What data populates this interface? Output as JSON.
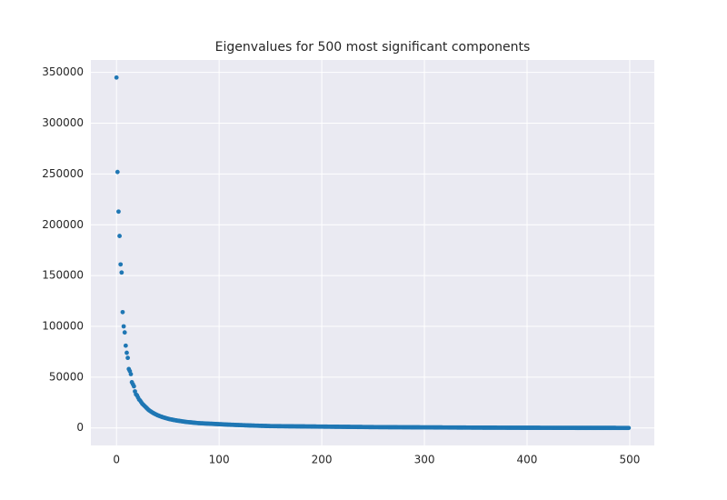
{
  "chart_data": {
    "type": "scatter",
    "title": "Eigenvalues for 500 most significant components",
    "x": [
      0,
      1,
      2,
      3,
      4,
      5,
      6,
      7,
      8,
      9,
      10,
      11,
      12,
      13,
      14,
      15,
      16,
      17,
      18,
      19,
      20,
      21,
      22,
      23,
      24,
      25,
      26,
      27,
      28,
      29,
      30,
      31,
      32,
      33,
      34,
      35,
      36,
      37,
      38,
      39,
      40,
      41,
      42,
      43,
      44,
      45,
      46,
      47,
      48,
      49,
      50,
      51,
      52,
      53,
      54,
      55,
      56,
      57,
      58,
      59,
      60,
      61,
      62,
      63,
      64,
      65,
      66,
      67,
      68,
      69,
      70,
      71,
      72,
      73,
      74,
      75,
      76,
      77,
      78,
      79,
      80,
      81,
      82,
      83,
      84,
      85,
      86,
      87,
      88,
      89,
      90,
      91,
      92,
      93,
      94,
      95,
      96,
      97,
      98,
      99,
      100,
      101,
      102,
      103,
      104,
      105,
      106,
      107,
      108,
      109,
      110,
      111,
      112,
      113,
      114,
      115,
      116,
      117,
      118,
      119,
      120,
      121,
      122,
      123,
      124,
      125,
      126,
      127,
      128,
      129,
      130,
      131,
      132,
      133,
      134,
      135,
      136,
      137,
      138,
      139,
      140,
      141,
      142,
      143,
      144,
      145,
      146,
      147,
      148,
      149,
      150,
      151,
      152,
      153,
      154,
      155,
      156,
      157,
      158,
      159,
      160,
      161,
      162,
      163,
      164,
      165,
      166,
      167,
      168,
      169,
      170,
      171,
      172,
      173,
      174,
      175,
      176,
      177,
      178,
      179,
      180,
      181,
      182,
      183,
      184,
      185,
      186,
      187,
      188,
      189,
      190,
      191,
      192,
      193,
      194,
      195,
      196,
      197,
      198,
      199,
      200,
      201,
      202,
      203,
      204,
      205,
      206,
      207,
      208,
      209,
      210,
      211,
      212,
      213,
      214,
      215,
      216,
      217,
      218,
      219,
      220,
      221,
      222,
      223,
      224,
      225,
      226,
      227,
      228,
      229,
      230,
      231,
      232,
      233,
      234,
      235,
      236,
      237,
      238,
      239,
      240,
      241,
      242,
      243,
      244,
      245,
      246,
      247,
      248,
      249,
      250,
      251,
      252,
      253,
      254,
      255,
      256,
      257,
      258,
      259,
      260,
      261,
      262,
      263,
      264,
      265,
      266,
      267,
      268,
      269,
      270,
      271,
      272,
      273,
      274,
      275,
      276,
      277,
      278,
      279,
      280,
      281,
      282,
      283,
      284,
      285,
      286,
      287,
      288,
      289,
      290,
      291,
      292,
      293,
      294,
      295,
      296,
      297,
      298,
      299,
      300,
      301,
      302,
      303,
      304,
      305,
      306,
      307,
      308,
      309,
      310,
      311,
      312,
      313,
      314,
      315,
      316,
      317,
      318,
      319,
      320,
      321,
      322,
      323,
      324,
      325,
      326,
      327,
      328,
      329,
      330,
      331,
      332,
      333,
      334,
      335,
      336,
      337,
      338,
      339,
      340,
      341,
      342,
      343,
      344,
      345,
      346,
      347,
      348,
      349,
      350,
      351,
      352,
      353,
      354,
      355,
      356,
      357,
      358,
      359,
      360,
      361,
      362,
      363,
      364,
      365,
      366,
      367,
      368,
      369,
      370,
      371,
      372,
      373,
      374,
      375,
      376,
      377,
      378,
      379,
      380,
      381,
      382,
      383,
      384,
      385,
      386,
      387,
      388,
      389,
      390,
      391,
      392,
      393,
      394,
      395,
      396,
      397,
      398,
      399,
      400,
      401,
      402,
      403,
      404,
      405,
      406,
      407,
      408,
      409,
      410,
      411,
      412,
      413,
      414,
      415,
      416,
      417,
      418,
      419,
      420,
      421,
      422,
      423,
      424,
      425,
      426,
      427,
      428,
      429,
      430,
      431,
      432,
      433,
      434,
      435,
      436,
      437,
      438,
      439,
      440,
      441,
      442,
      443,
      444,
      445,
      446,
      447,
      448,
      449,
      450,
      451,
      452,
      453,
      454,
      455,
      456,
      457,
      458,
      459,
      460,
      461,
      462,
      463,
      464,
      465,
      466,
      467,
      468,
      469,
      470,
      471,
      472,
      473,
      474,
      475,
      476,
      477,
      478,
      479,
      480,
      481,
      482,
      483,
      484,
      485,
      486,
      487,
      488,
      489,
      490,
      491,
      492,
      493,
      494,
      495,
      496,
      497,
      498,
      499
    ],
    "values": [
      345000,
      252000,
      213000,
      189000,
      161000,
      153000,
      114000,
      100000,
      94000,
      81000,
      74000,
      69000,
      58000,
      56000,
      53000,
      45000,
      43000,
      41000,
      36000,
      33000,
      32000,
      30000,
      28000,
      27000,
      25500,
      24000,
      23000,
      22000,
      21000,
      20000,
      19000,
      18000,
      17200,
      16500,
      15800,
      15200,
      14600,
      14000,
      13500,
      13000,
      12500,
      12100,
      11700,
      11300,
      11000,
      10600,
      10300,
      10000,
      9700,
      9400,
      9100,
      8850,
      8600,
      8400,
      8200,
      8000,
      7800,
      7600,
      7400,
      7250,
      7100,
      6950,
      6800,
      6650,
      6500,
      6350,
      6200,
      6050,
      5900,
      5800,
      5700,
      5600,
      5500,
      5400,
      5300,
      5200,
      5100,
      5000,
      4900,
      4800,
      4700,
      4650,
      4600,
      4550,
      4500,
      4450,
      4400,
      4350,
      4300,
      4250,
      4200,
      4150,
      4100,
      4050,
      4000,
      3950,
      3900,
      3850,
      3800,
      3750,
      3700,
      3650,
      3600,
      3550,
      3500,
      3450,
      3400,
      3350,
      3300,
      3250,
      3200,
      3160,
      3120,
      3080,
      3040,
      3000,
      2960,
      2920,
      2880,
      2840,
      2800,
      2760,
      2720,
      2680,
      2640,
      2600,
      2560,
      2520,
      2480,
      2440,
      2400,
      2370,
      2340,
      2310,
      2280,
      2250,
      2220,
      2190,
      2160,
      2130,
      2100,
      2070,
      2040,
      2010,
      1980,
      1950,
      1920,
      1890,
      1860,
      1830,
      1800,
      1790,
      1780,
      1770,
      1760,
      1750,
      1740,
      1730,
      1720,
      1710,
      1700,
      1690,
      1680,
      1670,
      1660,
      1650,
      1640,
      1630,
      1620,
      1610,
      1600,
      1590,
      1580,
      1570,
      1560,
      1550,
      1540,
      1530,
      1520,
      1510,
      1500,
      1490,
      1480,
      1470,
      1460,
      1450,
      1440,
      1430,
      1420,
      1410,
      1400,
      1390,
      1380,
      1370,
      1360,
      1350,
      1340,
      1330,
      1320,
      1310,
      1300,
      1290,
      1280,
      1270,
      1260,
      1250,
      1240,
      1230,
      1220,
      1210,
      1200,
      1190,
      1180,
      1170,
      1160,
      1150,
      1140,
      1130,
      1120,
      1110,
      1100,
      1090,
      1080,
      1070,
      1060,
      1050,
      1040,
      1030,
      1020,
      1010,
      1000,
      990,
      980,
      970,
      960,
      950,
      940,
      930,
      920,
      910,
      900,
      890,
      880,
      870,
      860,
      850,
      840,
      830,
      820,
      810,
      800,
      795,
      790,
      785,
      780,
      775,
      770,
      765,
      760,
      755,
      750,
      745,
      740,
      735,
      730,
      725,
      720,
      715,
      710,
      705,
      700,
      695,
      690,
      685,
      680,
      675,
      670,
      665,
      660,
      655,
      650,
      645,
      640,
      635,
      630,
      625,
      620,
      615,
      610,
      605,
      600,
      595,
      590,
      585,
      580,
      575,
      570,
      565,
      560,
      555,
      550,
      545,
      540,
      535,
      530,
      525,
      520,
      515,
      510,
      505,
      500,
      495,
      490,
      485,
      480,
      475,
      470,
      465,
      460,
      455,
      450,
      445,
      440,
      435,
      430,
      425,
      420,
      415,
      410,
      405,
      400,
      395,
      390,
      385,
      380,
      375,
      370,
      365,
      360,
      355,
      350,
      345,
      340,
      335,
      330,
      325,
      320,
      315,
      310,
      305,
      300,
      297,
      294,
      291,
      288,
      285,
      282,
      279,
      276,
      273,
      270,
      267,
      264,
      261,
      258,
      255,
      252,
      249,
      246,
      243,
      240,
      237,
      234,
      231,
      228,
      225,
      222,
      219,
      216,
      213,
      210,
      207,
      204,
      201,
      198,
      195,
      192,
      189,
      186,
      183,
      180,
      177,
      174,
      171,
      168,
      165,
      162,
      159,
      156,
      153,
      150,
      148,
      146,
      144,
      142,
      140,
      138,
      136,
      134,
      132,
      130,
      128,
      126,
      124,
      122,
      120,
      118,
      116,
      114,
      112,
      110,
      108,
      106,
      104,
      102,
      100,
      98,
      96,
      94,
      92,
      90,
      88,
      86,
      84,
      82,
      80,
      78,
      76,
      74,
      72,
      70,
      68,
      66,
      64,
      62,
      60,
      58,
      56,
      54,
      52,
      50,
      49,
      48,
      47,
      46,
      45,
      44,
      43,
      42,
      41,
      40,
      39,
      38,
      37,
      36,
      35,
      34,
      33,
      32,
      31,
      30,
      29,
      28,
      27,
      26,
      25,
      24,
      23,
      22,
      21,
      20,
      19,
      18,
      17,
      16,
      15,
      14,
      13,
      12,
      11,
      10,
      9,
      8,
      7,
      6,
      5,
      4,
      3,
      2,
      1
    ],
    "color": "#1f77b4",
    "xlim": [
      -24.95,
      523.95
    ],
    "xticks": [
      0,
      100,
      200,
      300,
      400,
      500
    ],
    "ylim": [
      -17250,
      362250
    ],
    "yticks": [
      0,
      50000,
      100000,
      150000,
      200000,
      250000,
      300000,
      350000
    ],
    "grid": true
  }
}
